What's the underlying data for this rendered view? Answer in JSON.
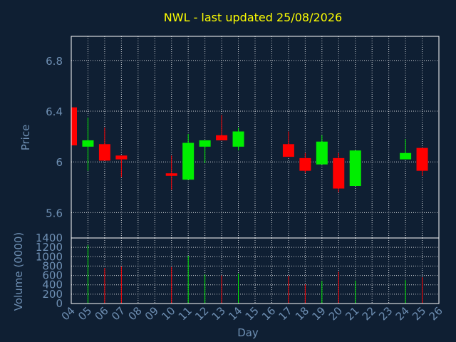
{
  "colors": {
    "background": "#0f1f33",
    "title": "#ffff00",
    "axis_text": "#6e8fb3",
    "frame": "#ffffff",
    "grid": "#ffffff",
    "up": "#00ee00",
    "down": "#ff0000"
  },
  "chart_data": [
    {
      "type": "candlestick",
      "title": "NWL - last updated 25/08/2026",
      "ylabel": "Price",
      "ylim": [
        5.4,
        6.99
      ],
      "y_ticks": [
        "5.6",
        "6",
        "6.4",
        "6.8"
      ],
      "y_tick_values": [
        5.6,
        6.0,
        6.4,
        6.8
      ],
      "grid": true,
      "candles": [
        {
          "day": "04",
          "open": 6.43,
          "close": 6.13,
          "high": 6.43,
          "low": 6.13
        },
        {
          "day": "05",
          "open": 6.12,
          "close": 6.17,
          "high": 6.35,
          "low": 5.93
        },
        {
          "day": "06",
          "open": 6.14,
          "close": 6.01,
          "high": 6.27,
          "low": 6.01
        },
        {
          "day": "07",
          "open": 6.05,
          "close": 6.02,
          "high": 6.05,
          "low": 5.88
        },
        {
          "day": "10",
          "open": 5.91,
          "close": 5.89,
          "high": 6.05,
          "low": 5.78
        },
        {
          "day": "11",
          "open": 5.86,
          "close": 6.15,
          "high": 6.22,
          "low": 5.86
        },
        {
          "day": "12",
          "open": 6.12,
          "close": 6.17,
          "high": 6.17,
          "low": 5.99
        },
        {
          "day": "13",
          "open": 6.21,
          "close": 6.17,
          "high": 6.37,
          "low": 6.17
        },
        {
          "day": "14",
          "open": 6.12,
          "close": 6.24,
          "high": 6.27,
          "low": 6.09
        },
        {
          "day": "17",
          "open": 6.14,
          "close": 6.04,
          "high": 6.24,
          "low": 6.04
        },
        {
          "day": "18",
          "open": 6.03,
          "close": 5.93,
          "high": 6.07,
          "low": 5.91
        },
        {
          "day": "19",
          "open": 5.98,
          "close": 6.16,
          "high": 6.21,
          "low": 5.98
        },
        {
          "day": "20",
          "open": 6.03,
          "close": 5.79,
          "high": 6.07,
          "low": 5.76
        },
        {
          "day": "21",
          "open": 5.81,
          "close": 6.09,
          "high": 6.09,
          "low": 5.81
        },
        {
          "day": "24",
          "open": 6.02,
          "close": 6.07,
          "high": 6.18,
          "low": 6.02
        },
        {
          "day": "25",
          "open": 6.11,
          "close": 5.93,
          "high": 6.11,
          "low": 5.89
        }
      ]
    },
    {
      "type": "bar",
      "ylabel": "Volume (0000)",
      "xlabel": "Day",
      "ylim": [
        0,
        1400
      ],
      "y_ticks": [
        "0",
        "200",
        "400",
        "600",
        "800",
        "1000",
        "1200",
        "1400"
      ],
      "y_tick_values": [
        0,
        200,
        400,
        600,
        800,
        1000,
        1200,
        1400
      ],
      "categories": [
        "04",
        "05",
        "06",
        "07",
        "08",
        "09",
        "10",
        "11",
        "12",
        "13",
        "14",
        "15",
        "16",
        "17",
        "18",
        "19",
        "20",
        "21",
        "22",
        "23",
        "24",
        "25",
        "26"
      ],
      "volumes": [
        {
          "day": "05",
          "value": 1250,
          "direction": "up"
        },
        {
          "day": "06",
          "value": 760,
          "direction": "down"
        },
        {
          "day": "07",
          "value": 790,
          "direction": "down"
        },
        {
          "day": "10",
          "value": 780,
          "direction": "down"
        },
        {
          "day": "11",
          "value": 1020,
          "direction": "up"
        },
        {
          "day": "12",
          "value": 620,
          "direction": "up"
        },
        {
          "day": "13",
          "value": 600,
          "direction": "down"
        },
        {
          "day": "14",
          "value": 640,
          "direction": "up"
        },
        {
          "day": "17",
          "value": 590,
          "direction": "down"
        },
        {
          "day": "18",
          "value": 410,
          "direction": "down"
        },
        {
          "day": "19",
          "value": 480,
          "direction": "up"
        },
        {
          "day": "20",
          "value": 680,
          "direction": "down"
        },
        {
          "day": "21",
          "value": 490,
          "direction": "up"
        },
        {
          "day": "24",
          "value": 500,
          "direction": "up"
        },
        {
          "day": "25",
          "value": 560,
          "direction": "down"
        }
      ]
    }
  ]
}
